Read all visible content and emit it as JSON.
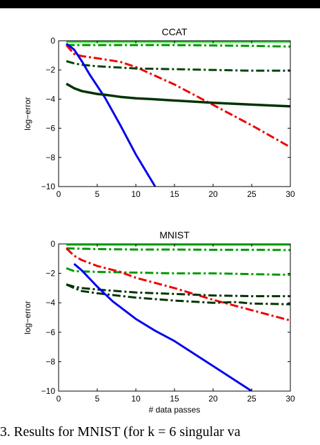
{
  "caption": "3. Results for MNIST (for k = 6 singular va",
  "chart_data": [
    {
      "type": "line",
      "title": "CCAT",
      "xlabel": "",
      "ylabel": "log−error",
      "xlim": [
        0,
        30
      ],
      "ylim": [
        -10,
        0
      ],
      "xticks": [
        0,
        5,
        10,
        15,
        20,
        25,
        30
      ],
      "yticks": [
        0,
        -2,
        -4,
        -6,
        -8,
        -10
      ],
      "ytick_labels": [
        "0",
        "−2",
        "−4",
        "−6",
        "−8",
        "−10"
      ],
      "series": [
        {
          "color": "#00dd00",
          "style": "solid",
          "width": 3,
          "x": [
            1,
            30
          ],
          "y": [
            -0.05,
            -0.05
          ]
        },
        {
          "color": "#009900",
          "style": "dashdot",
          "width": 3,
          "x": [
            1,
            5,
            10,
            15,
            20,
            25,
            30
          ],
          "y": [
            -0.3,
            -0.3,
            -0.3,
            -0.3,
            -0.32,
            -0.35,
            -0.4
          ]
        },
        {
          "color": "#ee0000",
          "style": "dashdot",
          "width": 3,
          "x": [
            1,
            2,
            3,
            5,
            8,
            10,
            15,
            20,
            25,
            30
          ],
          "y": [
            -0.3,
            -0.9,
            -1.05,
            -1.2,
            -1.45,
            -1.8,
            -3.0,
            -4.4,
            -5.8,
            -7.3
          ]
        },
        {
          "color": "#004400",
          "style": "dashdot",
          "width": 3,
          "x": [
            1,
            2,
            3,
            5,
            10,
            15,
            20,
            25,
            30
          ],
          "y": [
            -1.4,
            -1.55,
            -1.65,
            -1.75,
            -1.9,
            -1.95,
            -2.0,
            -2.05,
            -2.05
          ]
        },
        {
          "color": "#0000ee",
          "style": "solid",
          "width": 3,
          "x": [
            1,
            2,
            3,
            4,
            5,
            6,
            8,
            10,
            12.5
          ],
          "y": [
            -0.2,
            -0.6,
            -1.4,
            -2.3,
            -3.1,
            -3.9,
            -5.8,
            -7.8,
            -10.0
          ]
        },
        {
          "color": "#003300",
          "style": "solid",
          "width": 3.5,
          "x": [
            1,
            2,
            3,
            4,
            5,
            6,
            8,
            10,
            12,
            15,
            20,
            25,
            30
          ],
          "y": [
            -2.95,
            -3.25,
            -3.45,
            -3.55,
            -3.65,
            -3.7,
            -3.85,
            -3.95,
            -4.0,
            -4.1,
            -4.25,
            -4.38,
            -4.5
          ]
        }
      ]
    },
    {
      "type": "line",
      "title": "MNIST",
      "xlabel": "# data passes",
      "ylabel": "log−error",
      "xlim": [
        0,
        30
      ],
      "ylim": [
        -10,
        0
      ],
      "xticks": [
        0,
        5,
        10,
        15,
        20,
        25,
        30
      ],
      "yticks": [
        0,
        -2,
        -4,
        -6,
        -8,
        -10
      ],
      "ytick_labels": [
        "0",
        "−2",
        "−4",
        "−6",
        "−8",
        "−10"
      ],
      "series": [
        {
          "color": "#00dd00",
          "style": "solid",
          "width": 3,
          "x": [
            1,
            30
          ],
          "y": [
            -0.05,
            -0.05
          ]
        },
        {
          "color": "#009900",
          "style": "dashdot",
          "width": 3,
          "x": [
            1,
            5,
            10,
            15,
            20,
            25,
            30
          ],
          "y": [
            -0.3,
            -0.35,
            -0.38,
            -0.38,
            -0.4,
            -0.4,
            -0.42
          ]
        },
        {
          "color": "#009900",
          "style": "dashdot",
          "width": 3,
          "x": [
            1,
            2,
            5,
            10,
            15,
            20,
            25,
            30
          ],
          "y": [
            -1.65,
            -1.85,
            -1.9,
            -1.95,
            -2.0,
            -2.0,
            -2.05,
            -2.1
          ]
        },
        {
          "color": "#ee0000",
          "style": "dashdot",
          "width": 3,
          "x": [
            1,
            2,
            3,
            5,
            8,
            10,
            15,
            20,
            25,
            30
          ],
          "y": [
            -0.3,
            -0.8,
            -1.1,
            -1.5,
            -1.9,
            -2.3,
            -3.0,
            -3.8,
            -4.5,
            -5.2
          ]
        },
        {
          "color": "#003300",
          "style": "dashdot",
          "width": 3,
          "x": [
            1,
            2,
            3,
            5,
            10,
            15,
            20,
            25,
            30
          ],
          "y": [
            -2.75,
            -2.9,
            -3.0,
            -3.1,
            -3.3,
            -3.4,
            -3.5,
            -3.55,
            -3.55
          ]
        },
        {
          "color": "#003300",
          "style": "dashdot",
          "width": 3,
          "x": [
            1,
            2,
            3,
            5,
            10,
            15,
            20,
            23,
            25,
            30
          ],
          "y": [
            -2.75,
            -3.0,
            -3.2,
            -3.35,
            -3.65,
            -3.85,
            -4.0,
            -3.95,
            -4.05,
            -4.1
          ]
        },
        {
          "color": "#0000ee",
          "style": "solid",
          "width": 3,
          "x": [
            2,
            3,
            5,
            7,
            10,
            12.5,
            15,
            20,
            25
          ],
          "y": [
            -1.35,
            -1.8,
            -2.9,
            -3.9,
            -5.1,
            -5.9,
            -6.6,
            -8.3,
            -10.0
          ]
        }
      ]
    }
  ]
}
